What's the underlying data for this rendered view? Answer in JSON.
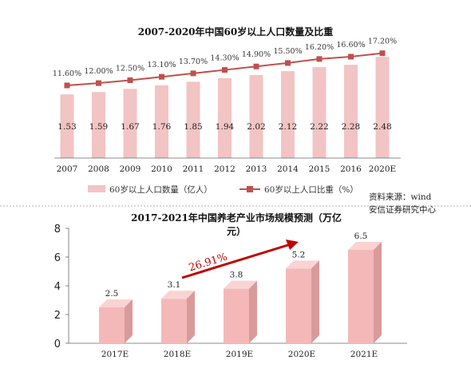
{
  "chart_data": [
    {
      "type": "bar",
      "title": "2007-2020年中国60岁以上人口数量及比重",
      "categories": [
        "2007",
        "2008",
        "2009",
        "2010",
        "2011",
        "2012",
        "2013",
        "2014",
        "2015",
        "2016",
        "2020E"
      ],
      "series": [
        {
          "name": "60岁以上人口数量（亿人）",
          "type": "bar",
          "values": [
            1.53,
            1.59,
            1.67,
            1.76,
            1.85,
            1.94,
            2.02,
            2.12,
            2.22,
            2.28,
            2.48
          ],
          "color": "#f2c4c4"
        },
        {
          "name": "60岁以上人口比重（%）",
          "type": "line",
          "values": [
            11.6,
            12.0,
            12.5,
            13.1,
            13.7,
            14.3,
            14.9,
            15.5,
            16.2,
            16.6,
            17.2
          ],
          "color": "#c0504d",
          "labels": [
            "11.60%",
            "12.00%",
            "12.50%",
            "13.10%",
            "13.70%",
            "14.30%",
            "14.90%",
            "15.50%",
            "16.20%",
            "16.60%",
            "17.20%"
          ]
        }
      ],
      "legend_position": "bottom",
      "source": "资料来源：wind 安信证券研究中心"
    },
    {
      "type": "bar",
      "title": "2017-2021年中国养老产业市场规模预测（万亿元）",
      "categories": [
        "2017E",
        "2018E",
        "2019E",
        "2020E",
        "2021E"
      ],
      "values": [
        2.5,
        3.1,
        3.8,
        5.2,
        6.5
      ],
      "ylim": [
        0,
        8
      ],
      "yticks": [
        "0",
        "2",
        "4",
        "6",
        "8"
      ],
      "annotation": "26.91%",
      "color": "#f5b8b8"
    }
  ]
}
